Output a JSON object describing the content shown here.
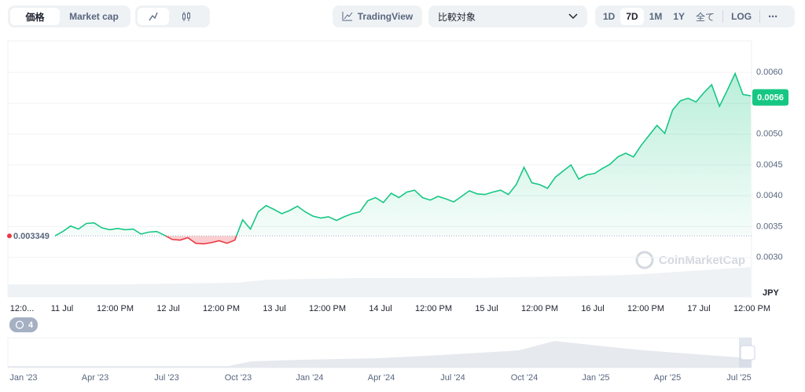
{
  "toolbar": {
    "tabs": [
      "価格",
      "Market cap"
    ],
    "tradingview": "TradingView",
    "compare": "比較対象",
    "ranges": [
      "1D",
      "7D",
      "1M",
      "1Y",
      "全て"
    ],
    "log": "LOG",
    "more": "⋯"
  },
  "indicator_count": 4,
  "chart_data": {
    "type": "area",
    "watermark": "CoinMarketCap",
    "currency": "JPY",
    "baseline": 0.003349,
    "current_price": 0.0056,
    "color_up": "#16c784",
    "color_down": "#ea3943",
    "grid": true,
    "ylim": [
      0.00236,
      0.00651
    ],
    "yticks": [
      {
        "value": 0.003,
        "label": "0.0030"
      },
      0.0035,
      {
        "value": 0.004,
        "label": "0.0040"
      },
      0.0045,
      {
        "value": 0.005,
        "label": "0.0050"
      },
      0.0055,
      {
        "value": 0.006,
        "label": "0.0060"
      }
    ],
    "x_tick_labels": [
      "12:0...",
      "11 Jul",
      "12:00 PM",
      "12 Jul",
      "12:00 PM",
      "13 Jul",
      "12:00 PM",
      "14 Jul",
      "12:00 PM",
      "15 Jul",
      "12:00 PM",
      "16 Jul",
      "12:00 PM",
      "17 Jul",
      "12:00 PM"
    ],
    "values": [
      0.00335,
      0.00342,
      0.00351,
      0.00346,
      0.00355,
      0.00356,
      0.00348,
      0.00345,
      0.00347,
      0.00345,
      0.00346,
      0.00338,
      0.00341,
      0.00342,
      0.00336,
      0.00329,
      0.00328,
      0.00332,
      0.00323,
      0.00322,
      0.00324,
      0.00327,
      0.00323,
      0.00328,
      0.00361,
      0.00346,
      0.00374,
      0.00384,
      0.00378,
      0.00371,
      0.00376,
      0.00383,
      0.00374,
      0.00367,
      0.00364,
      0.00366,
      0.0036,
      0.00366,
      0.00371,
      0.00374,
      0.00392,
      0.00397,
      0.00389,
      0.00404,
      0.00397,
      0.00406,
      0.00409,
      0.00397,
      0.00393,
      0.00399,
      0.00395,
      0.0039,
      0.00399,
      0.00408,
      0.00403,
      0.00402,
      0.00406,
      0.00409,
      0.00402,
      0.00418,
      0.00446,
      0.00421,
      0.00418,
      0.00412,
      0.0043,
      0.0044,
      0.0045,
      0.00427,
      0.00434,
      0.00436,
      0.00444,
      0.00451,
      0.00463,
      0.00469,
      0.00463,
      0.00482,
      0.00498,
      0.00514,
      0.00501,
      0.00539,
      0.00554,
      0.00558,
      0.00552,
      0.00567,
      0.0058,
      0.00545,
      0.00571,
      0.00598,
      0.00564,
      0.00562
    ]
  },
  "navigator": {
    "labels": [
      "Jan '23",
      "Apr '23",
      "Jul '23",
      "Oct '23",
      "Jan '24",
      "Apr '24",
      "Jul '24",
      "Oct '24",
      "Jan '25",
      "Apr '25",
      "Jul '25"
    ]
  }
}
